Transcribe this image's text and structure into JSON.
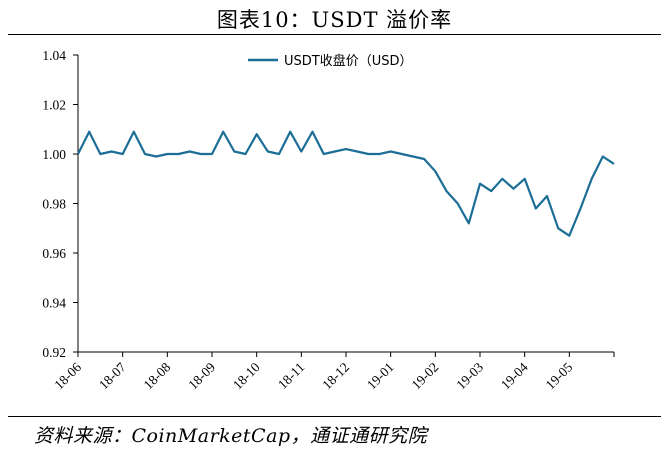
{
  "figure": {
    "title": "图表10：USDT 溢价率",
    "source": "资料来源：CoinMarketCap，通证通研究院"
  },
  "chart_data": {
    "type": "line",
    "title": "",
    "xlabel": "",
    "ylabel": "",
    "ylim": [
      0.92,
      1.04
    ],
    "y_ticks": [
      0.92,
      0.94,
      0.96,
      0.98,
      1.0,
      1.02,
      1.04
    ],
    "y_tick_labels": [
      "0.92",
      "0.94",
      "0.96",
      "0.98",
      "1.00",
      "1.02",
      "1.04"
    ],
    "x_tick_labels": [
      "18-06",
      "18-07",
      "18-08",
      "18-09",
      "18-10",
      "18-11",
      "18-12",
      "19-01",
      "19-02",
      "19-03",
      "19-04",
      "19-05"
    ],
    "legend_position": "top-center",
    "grid": false,
    "series": [
      {
        "name": "USDT收盘价（USD）",
        "color": "#1c6e96",
        "x": [
          0,
          0.25,
          0.5,
          0.75,
          1,
          1.25,
          1.5,
          1.75,
          2,
          2.25,
          2.5,
          2.75,
          3,
          3.25,
          3.5,
          3.75,
          4,
          4.25,
          4.5,
          4.75,
          5,
          5.25,
          5.5,
          5.75,
          6,
          6.25,
          6.5,
          6.75,
          7,
          7.25,
          7.5,
          7.75,
          8,
          8.25,
          8.5,
          8.75,
          9,
          9.25,
          9.5,
          9.75,
          10,
          10.25,
          10.5,
          10.75,
          11,
          11.25,
          11.5,
          11.75,
          12
        ],
        "y": [
          1.0,
          1.009,
          1.0,
          1.001,
          1.0,
          1.009,
          1.0,
          0.999,
          1.0,
          1.0,
          1.001,
          1.0,
          1.0,
          1.009,
          1.001,
          1.0,
          1.008,
          1.001,
          1.0,
          1.009,
          1.001,
          1.009,
          1.0,
          1.001,
          1.002,
          1.001,
          1.0,
          1.0,
          1.001,
          1.0,
          0.999,
          0.998,
          0.993,
          0.985,
          0.98,
          0.972,
          0.988,
          0.985,
          0.99,
          0.986,
          0.99,
          0.978,
          0.983,
          0.97,
          0.967,
          0.978,
          0.99,
          0.999,
          0.996
        ],
        "x2": [],
        "note": ""
      }
    ]
  }
}
